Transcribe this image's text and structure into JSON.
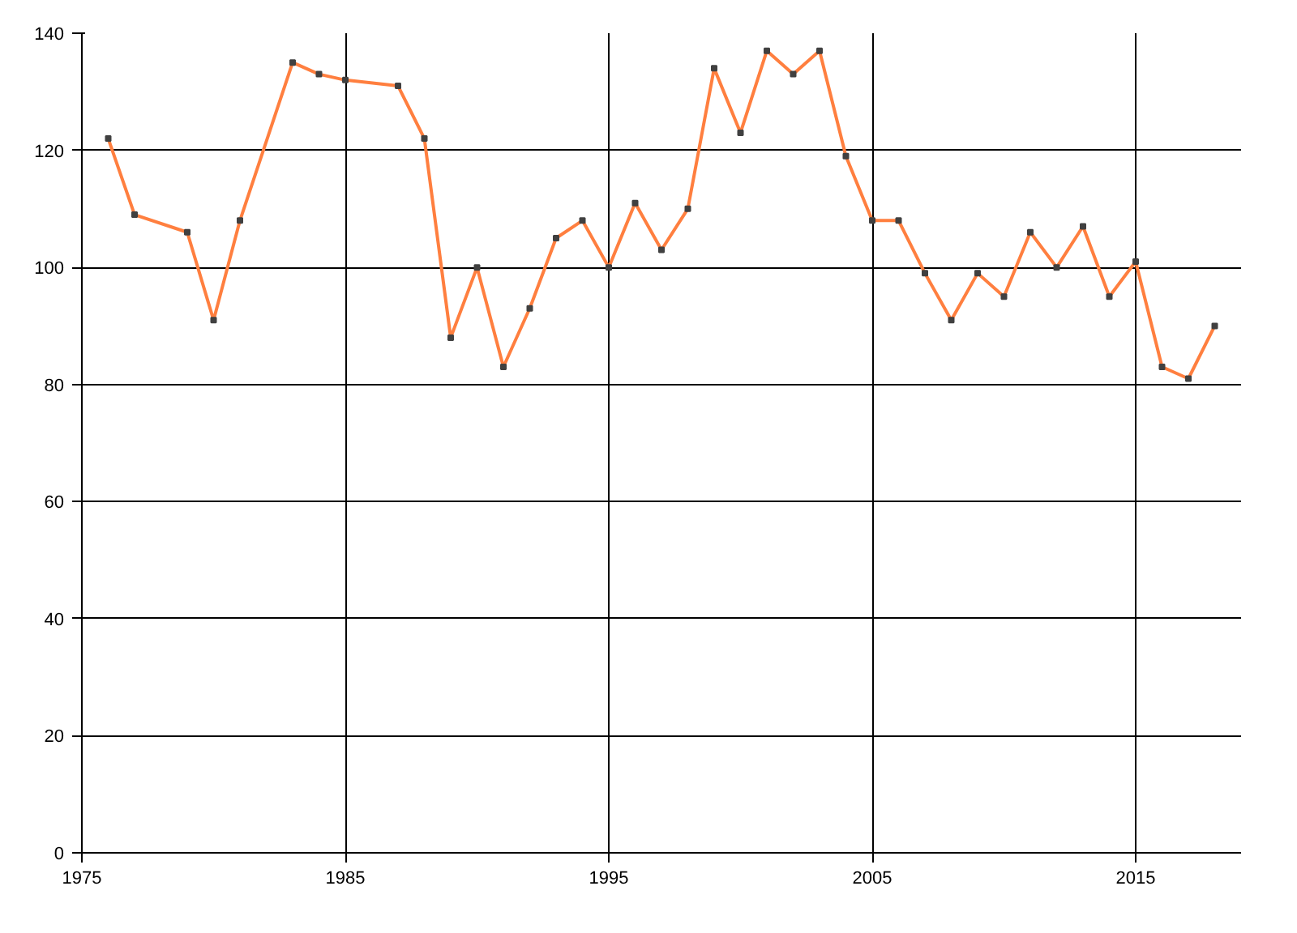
{
  "chart_data": {
    "type": "line",
    "x": [
      1976,
      1977,
      1979,
      1980,
      1981,
      1983,
      1984,
      1985,
      1987,
      1988,
      1989,
      1990,
      1991,
      1992,
      1993,
      1994,
      1995,
      1996,
      1997,
      1998,
      1999,
      2000,
      2001,
      2002,
      2003,
      2004,
      2005,
      2006,
      2007,
      2008,
      2009,
      2010,
      2011,
      2012,
      2013,
      2014,
      2015,
      2016,
      2017,
      2018
    ],
    "series": [
      {
        "color": "#ff7f3f",
        "values": [
          122,
          109,
          106,
          91,
          108,
          135,
          133,
          132,
          131,
          122,
          88,
          100,
          83,
          93,
          105,
          108,
          100,
          111,
          103,
          110,
          134,
          123,
          137,
          133,
          137,
          119,
          108,
          108,
          99,
          91,
          99,
          95,
          106,
          100,
          107,
          95,
          101,
          83,
          81,
          90
        ]
      }
    ],
    "xlim": [
      1975,
      2019
    ],
    "ylim": [
      0,
      140
    ],
    "xticks": [
      1975,
      1985,
      1995,
      2005,
      2015
    ],
    "yticks": [
      0,
      20,
      40,
      60,
      80,
      100,
      120,
      140
    ],
    "grid": true,
    "marker": "square",
    "line_style": "solid"
  }
}
